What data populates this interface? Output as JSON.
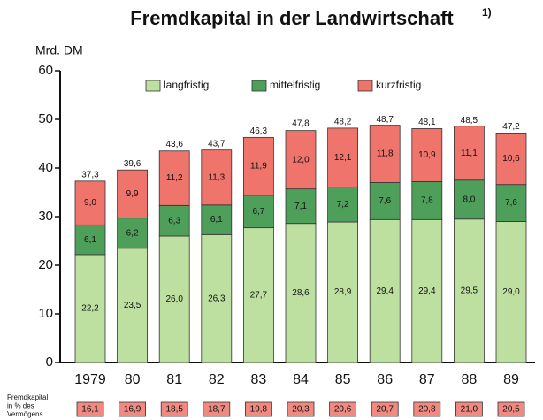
{
  "chart_data": {
    "type": "stacked_bar",
    "title": "Fremdkapital in der Landwirtschaft",
    "title_note": "1)",
    "y_label": "Mrd. DM",
    "categories": [
      "1979",
      "80",
      "81",
      "82",
      "83",
      "84",
      "85",
      "86",
      "87",
      "88",
      "89"
    ],
    "series": [
      {
        "name": "langfristig",
        "color": "#bde0a0",
        "values": [
          22.2,
          23.5,
          26.0,
          26.3,
          27.7,
          28.6,
          28.9,
          29.4,
          29.4,
          29.5,
          29.0
        ],
        "value_labels": [
          "22,2",
          "23,5",
          "26,0",
          "26,3",
          "27,7",
          "28,6",
          "28,9",
          "29,4",
          "29,4",
          "29,5",
          "29,0"
        ]
      },
      {
        "name": "mittelfristig",
        "color": "#4e9f5a",
        "values": [
          6.1,
          6.2,
          6.3,
          6.1,
          6.7,
          7.1,
          7.2,
          7.6,
          7.8,
          8.0,
          7.6
        ],
        "value_labels": [
          "6,1",
          "6,2",
          "6,3",
          "6,1",
          "6,7",
          "7,1",
          "7,2",
          "7,6",
          "7,8",
          "8,0",
          "7,6"
        ]
      },
      {
        "name": "kurzfristig",
        "color": "#ef746b",
        "values": [
          9.0,
          9.9,
          11.2,
          11.3,
          11.9,
          12.0,
          12.1,
          11.8,
          10.9,
          11.1,
          10.6
        ],
        "value_labels": [
          "9,0",
          "9,9",
          "11,2",
          "11,3",
          "11,9",
          "12,0",
          "12,1",
          "11,8",
          "10,9",
          "11,1",
          "10,6"
        ]
      }
    ],
    "totals": [
      37.3,
      39.6,
      43.6,
      43.7,
      46.3,
      47.8,
      48.2,
      48.7,
      48.1,
      48.5,
      47.2
    ],
    "total_labels": [
      "37,3",
      "39,6",
      "43,6",
      "43,7",
      "46,3",
      "47,8",
      "48,2",
      "48,7",
      "48,1",
      "48,5",
      "47,2"
    ],
    "ylim": [
      0,
      60
    ],
    "yticks": [
      0,
      10,
      20,
      30,
      40,
      50,
      60
    ],
    "legend": "top",
    "percent_row": {
      "label_lines": [
        "Fremdkapital",
        "in % des",
        "Vermögens"
      ],
      "color": "#f08a80",
      "values": [
        16.1,
        16.9,
        18.5,
        18.7,
        19.8,
        20.3,
        20.6,
        20.7,
        20.8,
        21.0,
        20.5
      ],
      "value_labels": [
        "16,1",
        "16,9",
        "18,5",
        "18,7",
        "19,8",
        "20,3",
        "20,6",
        "20,7",
        "20,8",
        "21,0",
        "20,5"
      ]
    }
  }
}
